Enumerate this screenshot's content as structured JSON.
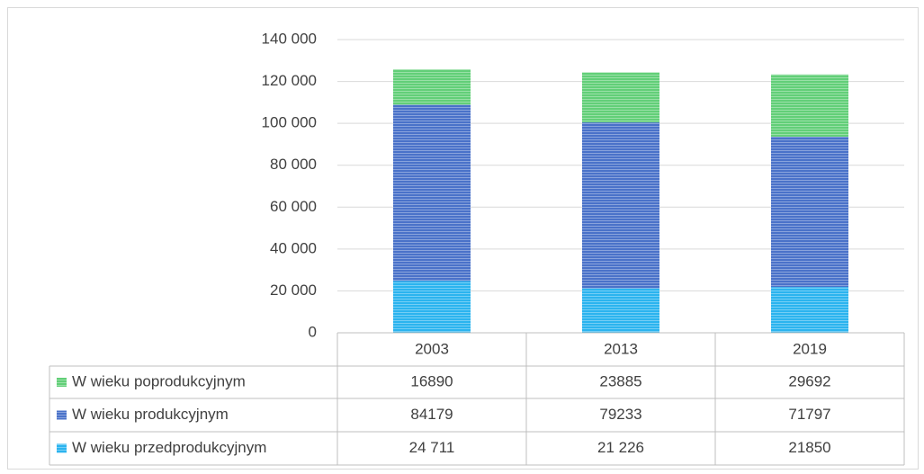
{
  "chart_data": {
    "type": "stacked_bar",
    "categories": [
      "2003",
      "2013",
      "2019"
    ],
    "series": [
      {
        "name": "W wieku przedprodukcyjnym",
        "color": "#2bb4ef",
        "values": [
          24711,
          21226,
          21850
        ],
        "value_labels": [
          "24 711",
          "21 226",
          "21850"
        ]
      },
      {
        "name": "W wieku produkcyjnym",
        "color": "#4a72c9",
        "values": [
          84179,
          79233,
          71797
        ]
      },
      {
        "name": "W wieku poprodukcyjnym",
        "color": "#62cf78",
        "values": [
          16890,
          23885,
          29692
        ]
      }
    ],
    "ylim": [
      0,
      140000
    ],
    "yticks": [
      0,
      {
        "value": 20000,
        "label": "20 000"
      },
      {
        "value": 40000,
        "label": "40 000"
      },
      {
        "value": 60000,
        "label": "60 000"
      },
      {
        "value": 80000,
        "label": "80 000"
      },
      {
        "value": 100000,
        "label": "100 000"
      },
      {
        "value": 120000,
        "label": "120 000"
      },
      {
        "value": 140000,
        "label": "140 000"
      }
    ],
    "grid": true,
    "legend": "table"
  }
}
